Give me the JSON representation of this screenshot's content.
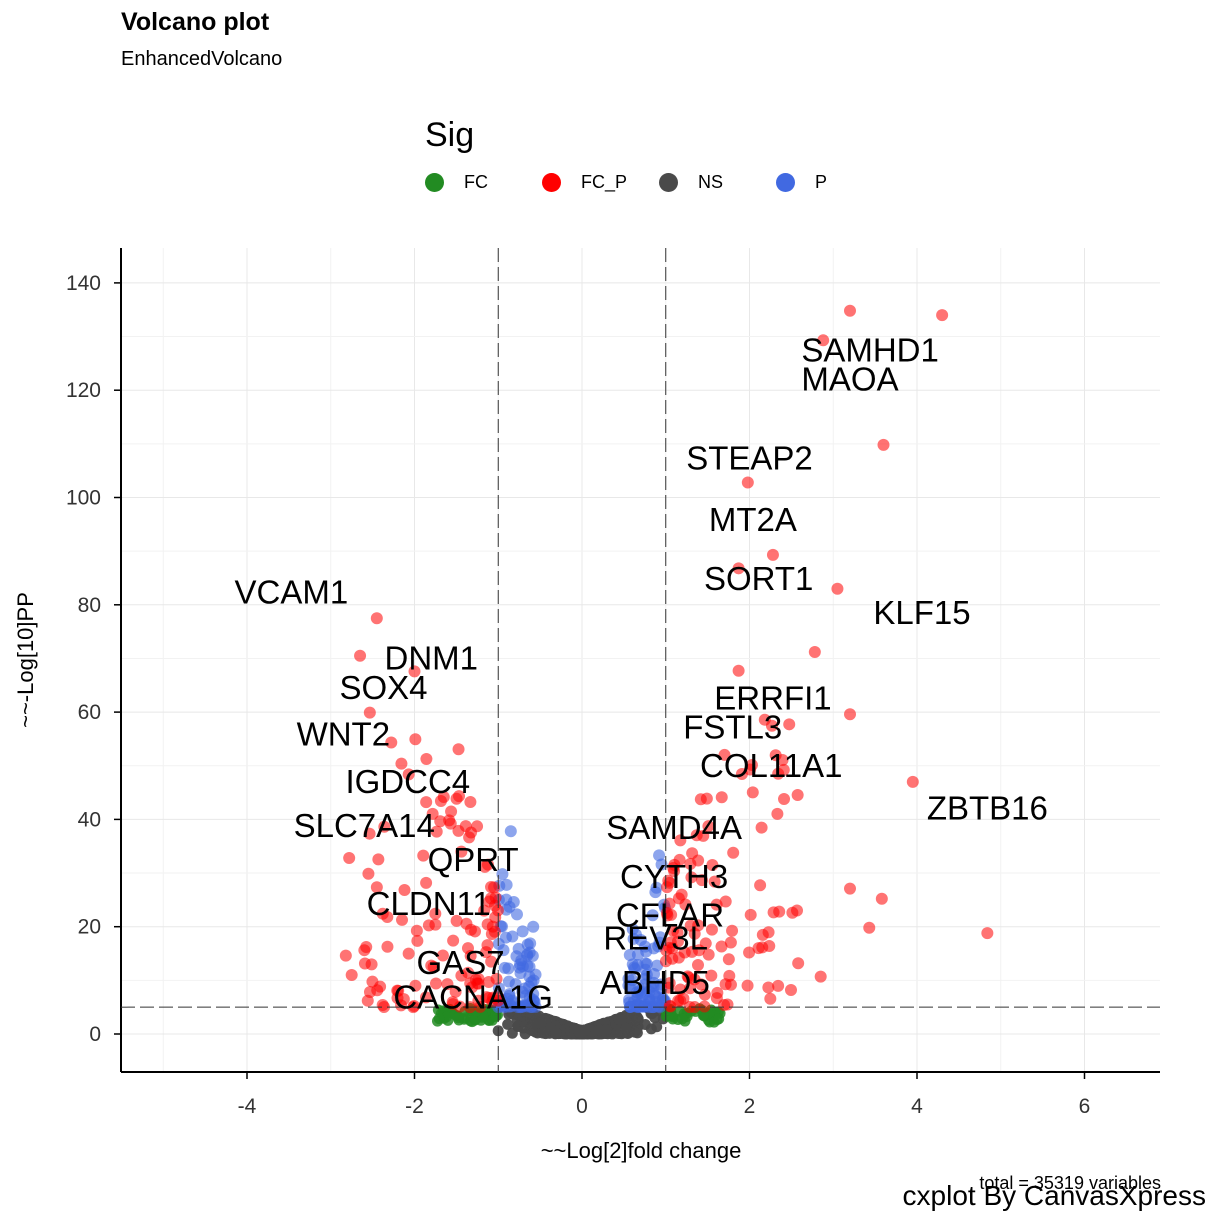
{
  "title": "Volcano plot",
  "subtitle": "EnhancedVolcano",
  "legend": {
    "title": "Sig",
    "items": [
      {
        "label": "FC",
        "color": "#228b22"
      },
      {
        "label": "FC_P",
        "color": "#ff0000"
      },
      {
        "label": "NS",
        "color": "#4a4a4a"
      },
      {
        "label": "P",
        "color": "#4169e1"
      }
    ]
  },
  "footer": {
    "count_text": "total = 35319 variables",
    "brand": "cxplot By CanvasXpress"
  },
  "chart_data": {
    "type": "scatter",
    "title": "Volcano plot",
    "subtitle": "EnhancedVolcano",
    "xlabel": "~~Log[2]fold change",
    "ylabel": "~~-Log[10]PP",
    "xlim": [
      -5.5,
      6.9
    ],
    "ylim": [
      -7,
      147
    ],
    "x_ticks": [
      -4,
      -2,
      0,
      2,
      4,
      6
    ],
    "y_ticks": [
      0,
      20,
      40,
      60,
      80,
      100,
      120,
      140
    ],
    "grid": true,
    "cutoffs": {
      "fc": [
        -1,
        1
      ],
      "p": 5
    },
    "legend_position": "top",
    "series_colors": {
      "FC": "#228b22",
      "FC_P": "#ff0000",
      "NS": "#4a4a4a",
      "P": "#4169e1"
    },
    "highlighted_points": [
      {
        "x": 3.2,
        "y": 134.8
      },
      {
        "x": 4.3,
        "y": 134
      },
      {
        "x": 2.88,
        "y": 129.3
      },
      {
        "x": 3.6,
        "y": 109.8
      },
      {
        "x": 1.98,
        "y": 102.8
      },
      {
        "x": 2.28,
        "y": 89.3
      },
      {
        "x": 1.87,
        "y": 86.8
      },
      {
        "x": 3.05,
        "y": 83
      },
      {
        "x": -2.45,
        "y": 77.5
      },
      {
        "x": 2.78,
        "y": 71.2
      },
      {
        "x": -2.65,
        "y": 70.5
      },
      {
        "x": -2.0,
        "y": 67.6
      },
      {
        "x": 1.87,
        "y": 67.7
      },
      {
        "x": 3.2,
        "y": 59.6
      },
      {
        "x": 3.95,
        "y": 47
      },
      {
        "x": 3.58,
        "y": 25.2
      },
      {
        "x": 3.43,
        "y": 19.8
      },
      {
        "x": 4.84,
        "y": 18.8
      },
      {
        "x": 3.2,
        "y": 27.1
      },
      {
        "x": 2.85,
        "y": 10.7
      },
      {
        "x": -2.75,
        "y": 11
      },
      {
        "x": -2.82,
        "y": 14.6
      },
      {
        "x": -2.78,
        "y": 32.8
      }
    ],
    "labels": [
      {
        "text": "SAMHD1",
        "x": 3.44,
        "y": 127.4
      },
      {
        "text": "MAOA",
        "x": 3.2,
        "y": 122
      },
      {
        "text": "STEAP2",
        "x": 2.0,
        "y": 107.3
      },
      {
        "text": "MT2A",
        "x": 2.04,
        "y": 95.8
      },
      {
        "text": "SORT1",
        "x": 2.11,
        "y": 84.8
      },
      {
        "text": "KLF15",
        "x": 4.06,
        "y": 78.5
      },
      {
        "text": "VCAM1",
        "x": -3.47,
        "y": 82.3
      },
      {
        "text": "DNM1",
        "x": -1.8,
        "y": 70
      },
      {
        "text": "SOX4",
        "x": -2.37,
        "y": 64.5
      },
      {
        "text": "ERRFI1",
        "x": 2.28,
        "y": 62.5
      },
      {
        "text": "FSTL3",
        "x": 1.8,
        "y": 57.1
      },
      {
        "text": "WNT2",
        "x": -2.85,
        "y": 55.8
      },
      {
        "text": "COL11A1",
        "x": 2.26,
        "y": 50
      },
      {
        "text": "IGDCC4",
        "x": -2.08,
        "y": 47
      },
      {
        "text": "ZBTB16",
        "x": 4.84,
        "y": 42
      },
      {
        "text": "SLC7A14",
        "x": -2.6,
        "y": 38.8
      },
      {
        "text": "SAMD4A",
        "x": 1.1,
        "y": 38.4
      },
      {
        "text": "QPRT",
        "x": -1.3,
        "y": 32.4
      },
      {
        "text": "CYTH3",
        "x": 1.1,
        "y": 29.3
      },
      {
        "text": "CLDN11",
        "x": -1.83,
        "y": 24.2
      },
      {
        "text": "CFLAR",
        "x": 1.05,
        "y": 22.1
      },
      {
        "text": "REV3L",
        "x": 0.88,
        "y": 17.8
      },
      {
        "text": "GAS7",
        "x": -1.45,
        "y": 13.2
      },
      {
        "text": "ABHD5",
        "x": 0.87,
        "y": 9.5
      },
      {
        "text": "CACNA1G",
        "x": -1.3,
        "y": 6.8
      }
    ]
  }
}
